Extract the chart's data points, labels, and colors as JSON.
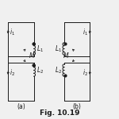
{
  "fig_title": "Fig. 10.19",
  "subfig_a_label": "(a)",
  "subfig_b_label": "(b)",
  "bg_color": "#f0f0f0",
  "line_color": "#1a1a1a",
  "text_color": "#1a1a1a",
  "font_size": 5.5,
  "title_font_size": 6.5
}
